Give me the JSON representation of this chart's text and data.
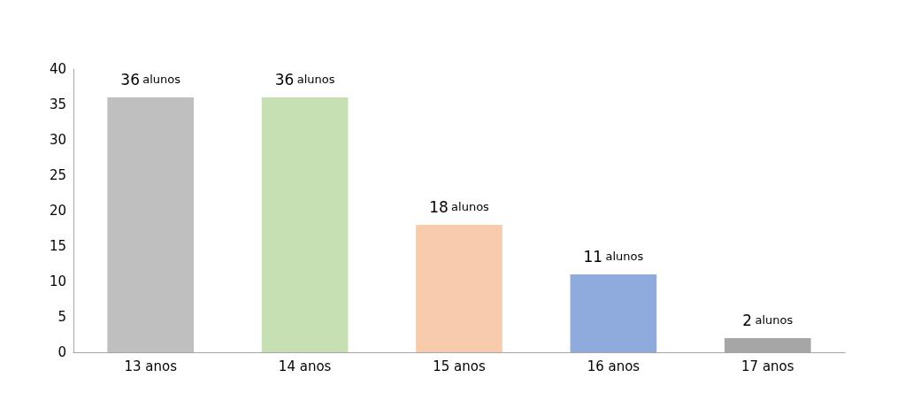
{
  "chart_data": {
    "type": "bar",
    "categories": [
      "13 anos",
      "14 anos",
      "15 anos",
      "16 anos",
      "17 anos"
    ],
    "values": [
      36,
      36,
      18,
      11,
      2
    ],
    "colors": [
      "#bfbfbf",
      "#c6e0b4",
      "#f8cbad",
      "#8faadc",
      "#a6a6a6"
    ],
    "value_labels": [
      "36 alunos",
      "36 alunos",
      "18 alunos",
      "11 alunos",
      "2 alunos"
    ],
    "ylim": [
      0,
      40
    ],
    "yticks": [
      0,
      5,
      10,
      15,
      20,
      25,
      30,
      35,
      40
    ],
    "grid": false
  }
}
